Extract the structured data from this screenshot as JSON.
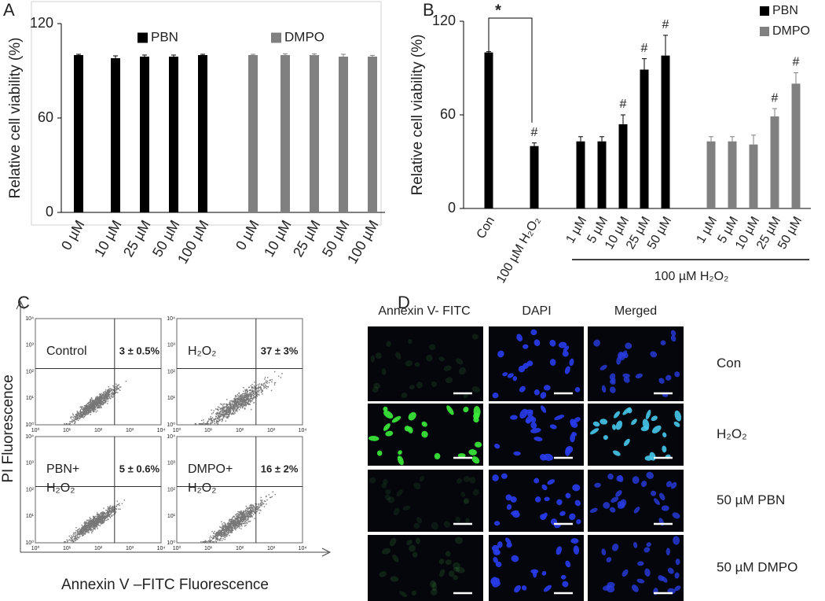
{
  "chart_data": [
    {
      "type": "bar",
      "panel_label": "A",
      "y_label": "Relative cell viability (%)",
      "categories": [
        "0 µM",
        "10 µM",
        "25 µM",
        "50 µM",
        "100 µM",
        "0 µM",
        "10 µM",
        "25 µM",
        "50 µM",
        "100 µM"
      ],
      "series": [
        {
          "name": "PBN",
          "color": "#000000",
          "values": [
            100,
            98,
            99,
            99,
            100,
            null,
            null,
            null,
            null,
            null
          ],
          "errors": [
            0.5,
            1.5,
            1,
            1,
            0.5,
            null,
            null,
            null,
            null,
            null
          ]
        },
        {
          "name": "DMPO",
          "color": "#808080",
          "values": [
            null,
            null,
            null,
            null,
            null,
            100,
            100,
            100,
            99,
            99
          ],
          "errors": [
            null,
            null,
            null,
            null,
            null,
            0.5,
            0.8,
            0.8,
            1.5,
            0.8
          ]
        }
      ],
      "ylim": [
        0,
        120
      ],
      "yticks": [
        0,
        60,
        120
      ]
    },
    {
      "type": "bar",
      "panel_label": "B",
      "y_label": "Relative cell viability (%)",
      "categories": [
        "Con",
        "100 µM H₂O₂",
        "1 µM",
        "5 µM",
        "10 µM",
        "25 µM",
        "50 µM",
        "1 µM",
        "5 µM",
        "10 µM",
        "25 µM",
        "50 µM"
      ],
      "series": [
        {
          "name": "PBN",
          "color": "#000000",
          "values": [
            100,
            40,
            43,
            43,
            54,
            89,
            98,
            null,
            null,
            null,
            null,
            null
          ],
          "errors": [
            0.5,
            2,
            3,
            3,
            6,
            7,
            13,
            null,
            null,
            null,
            null,
            null
          ]
        },
        {
          "name": "DMPO",
          "color": "#808080",
          "values": [
            null,
            null,
            null,
            null,
            null,
            null,
            null,
            43,
            43,
            41,
            59,
            80
          ],
          "errors": [
            null,
            null,
            null,
            null,
            null,
            null,
            null,
            3,
            3,
            6,
            5,
            7
          ]
        }
      ],
      "markers": [
        null,
        "#",
        null,
        null,
        "#",
        "#",
        "#",
        null,
        null,
        null,
        "#",
        "#"
      ],
      "annotation": "*",
      "group_label": "100 µM H₂O₂",
      "ylim": [
        0,
        120
      ],
      "yticks": [
        0,
        60,
        120
      ]
    }
  ],
  "flow_cytometry": {
    "panel_label": "C",
    "y_label": "PI Fluorescence",
    "x_label": "Annexin V –FITC Fluorescence",
    "axis_ticks": [
      "10⁰",
      "10¹",
      "10²",
      "10³",
      "10⁴"
    ],
    "plots": [
      {
        "label_lines": [
          "Control"
        ],
        "value": 3,
        "error": 0.5,
        "value_label": "3 ± 0.5%"
      },
      {
        "label_lines": [
          "H₂O₂"
        ],
        "value": 37,
        "error": 3,
        "value_label": "37 ± 3%"
      },
      {
        "label_lines": [
          "PBN+",
          "H₂O₂"
        ],
        "value": 5,
        "error": 0.6,
        "value_label": "5 ± 0.6%"
      },
      {
        "label_lines": [
          "DMPO+",
          "H₂O₂"
        ],
        "value": 16,
        "error": 2,
        "value_label": "16 ± 2%"
      }
    ]
  },
  "microscopy": {
    "panel_label": "D",
    "columns": [
      "Annexin V- FITC",
      "DAPI",
      "Merged"
    ],
    "rows": [
      "Con",
      "H₂O₂",
      "50 µM PBN",
      "50 µM DMPO"
    ]
  }
}
